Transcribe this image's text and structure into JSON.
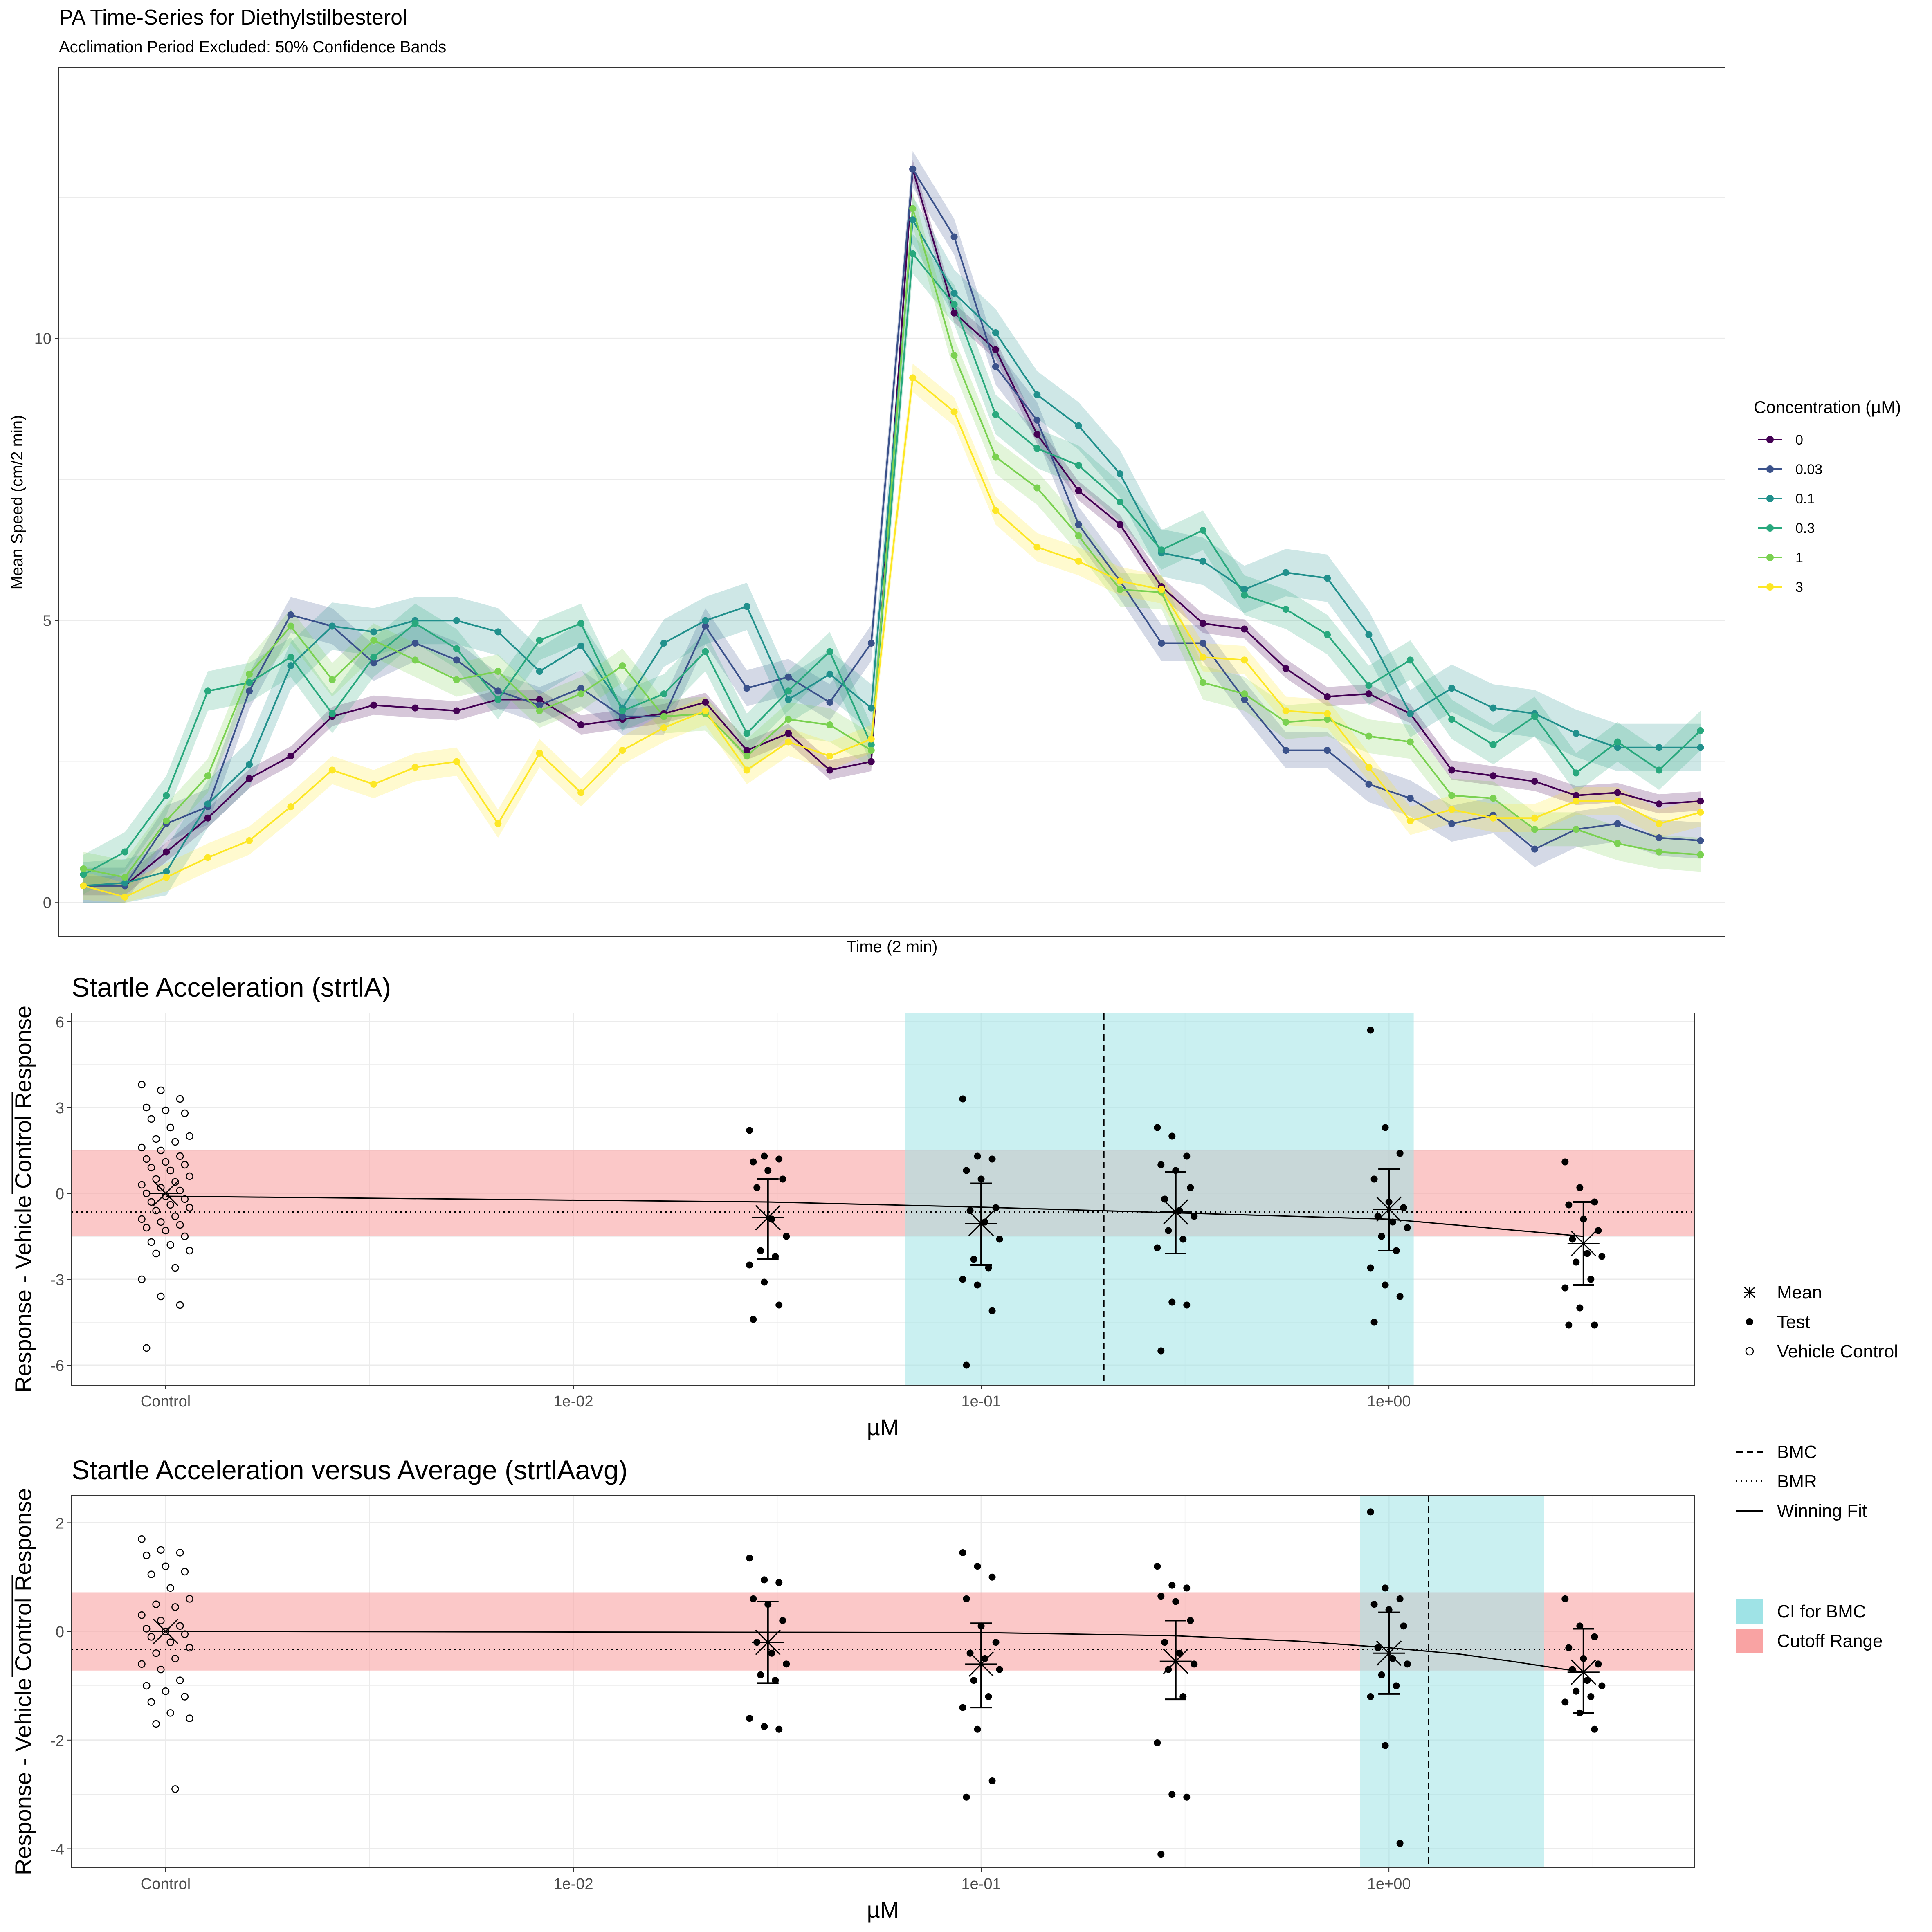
{
  "figure": {
    "title": "PA Time-Series for Diethylstilbesterol",
    "subtitle": "Acclimation Period Excluded: 50% Confidence Bands"
  },
  "chart_data": [
    {
      "type": "line",
      "title": "PA Time-Series for Diethylstilbesterol",
      "subtitle": "Acclimation Period Excluded: 50% Confidence Bands",
      "xlabel": "Time (2 min)",
      "ylabel": "Mean Speed (cm/2 min)",
      "ylim": [
        -0.6,
        14.8
      ],
      "yticks": [
        0,
        5,
        10
      ],
      "x": [
        1,
        2,
        3,
        4,
        5,
        6,
        7,
        8,
        9,
        10,
        11,
        12,
        13,
        14,
        15,
        16,
        17,
        18,
        19,
        20,
        21,
        22,
        23,
        24,
        25,
        26,
        27,
        28,
        29,
        30,
        31,
        32,
        33,
        34,
        35,
        36,
        37,
        38,
        39,
        40
      ],
      "grid": true,
      "legend_title": "Concentration (µM)",
      "legend_position": "right",
      "series": [
        {
          "name": "0",
          "color": "#440154",
          "band": 0.17,
          "values": [
            0.3,
            0.3,
            0.9,
            1.5,
            2.2,
            2.6,
            3.3,
            3.5,
            3.45,
            3.4,
            3.6,
            3.6,
            3.15,
            3.25,
            3.35,
            3.55,
            2.7,
            3.0,
            2.35,
            2.5,
            13.0,
            10.45,
            9.8,
            8.3,
            7.3,
            6.7,
            5.6,
            4.95,
            4.85,
            4.15,
            3.65,
            3.7,
            3.35,
            2.35,
            2.25,
            2.15,
            1.9,
            1.95,
            1.75,
            1.8
          ]
        },
        {
          "name": "0.03",
          "color": "#3b528b",
          "band": 0.32,
          "values": [
            0.3,
            0.3,
            1.4,
            1.7,
            3.75,
            5.1,
            4.9,
            4.25,
            4.6,
            4.3,
            3.75,
            3.5,
            3.8,
            3.3,
            3.3,
            4.9,
            3.8,
            4.0,
            3.55,
            4.6,
            13.0,
            11.8,
            9.5,
            8.55,
            6.7,
            5.7,
            4.6,
            4.6,
            3.6,
            2.7,
            2.7,
            2.1,
            1.85,
            1.4,
            1.55,
            0.95,
            1.3,
            1.4,
            1.15,
            1.1
          ]
        },
        {
          "name": "0.1",
          "color": "#21908c",
          "band": 0.42,
          "values": [
            0.3,
            0.35,
            0.55,
            1.75,
            2.45,
            4.2,
            4.9,
            4.8,
            5.0,
            5.0,
            4.8,
            4.1,
            4.55,
            3.45,
            4.6,
            5.0,
            5.25,
            3.6,
            4.05,
            3.45,
            12.1,
            10.8,
            10.1,
            9.0,
            8.45,
            7.6,
            6.2,
            6.05,
            5.55,
            5.85,
            5.75,
            4.75,
            3.35,
            3.8,
            3.45,
            3.35,
            3.0,
            2.75,
            2.75,
            2.75
          ]
        },
        {
          "name": "0.3",
          "color": "#28a87d",
          "band": 0.35,
          "values": [
            0.5,
            0.9,
            1.9,
            3.75,
            3.9,
            4.35,
            3.35,
            4.35,
            4.95,
            4.5,
            3.6,
            4.65,
            4.95,
            3.4,
            3.7,
            4.45,
            3.0,
            3.75,
            4.45,
            2.8,
            11.5,
            10.6,
            8.65,
            8.05,
            7.75,
            7.1,
            6.25,
            6.6,
            5.45,
            5.2,
            4.75,
            3.85,
            4.3,
            3.25,
            2.8,
            3.3,
            2.3,
            2.85,
            2.35,
            3.05
          ]
        },
        {
          "name": "1",
          "color": "#7ad151",
          "band": 0.3,
          "values": [
            0.6,
            0.45,
            1.45,
            2.25,
            4.05,
            4.9,
            3.95,
            4.65,
            4.3,
            3.95,
            4.1,
            3.4,
            3.7,
            4.2,
            3.3,
            3.35,
            2.6,
            3.25,
            3.15,
            2.7,
            12.3,
            9.7,
            7.9,
            7.35,
            6.5,
            5.55,
            5.5,
            3.9,
            3.7,
            3.2,
            3.25,
            2.95,
            2.85,
            1.9,
            1.85,
            1.3,
            1.3,
            1.05,
            0.9,
            0.85
          ]
        },
        {
          "name": "3",
          "color": "#fde725",
          "band": 0.25,
          "values": [
            0.3,
            0.1,
            0.45,
            0.8,
            1.1,
            1.7,
            2.35,
            2.1,
            2.4,
            2.5,
            1.4,
            2.65,
            1.95,
            2.7,
            3.1,
            3.4,
            2.35,
            2.85,
            2.6,
            2.9,
            9.3,
            8.7,
            6.95,
            6.3,
            6.05,
            5.7,
            5.55,
            4.35,
            4.3,
            3.4,
            3.35,
            2.4,
            1.45,
            1.65,
            1.5,
            1.5,
            1.8,
            1.8,
            1.4,
            1.6
          ]
        }
      ]
    },
    {
      "type": "scatter",
      "title": "Startle Acceleration (strtlA)",
      "xlabel": "µM",
      "ylabel": "Response - Vehicle Control Response",
      "x_scale": "log10",
      "xlim": [
        0.001,
        5
      ],
      "ylim": [
        -6.7,
        6.3
      ],
      "yticks": [
        -6,
        -3,
        0,
        3,
        6
      ],
      "xticks": [
        {
          "label": "Control",
          "value": 0.001
        },
        {
          "label": "1e-02",
          "value": 0.01
        },
        {
          "label": "1e-01",
          "value": 0.1
        },
        {
          "label": "1e+00",
          "value": 1
        }
      ],
      "bmc": 0.2,
      "bmc_ci": [
        0.065,
        1.15
      ],
      "bmr": -0.65,
      "cutoff_range": [
        -1.5,
        1.5
      ],
      "winning_fit": [
        [
          0.001,
          -0.1
        ],
        [
          0.03,
          -0.3
        ],
        [
          0.1,
          -0.48
        ],
        [
          0.3,
          -0.68
        ],
        [
          1.0,
          -0.9
        ],
        [
          3.0,
          -1.5
        ]
      ],
      "groups": [
        {
          "label": "Control",
          "conc": 0.001,
          "kind": "Vehicle Control",
          "mean": 0.0,
          "points": [
            3.8,
            3.6,
            3.3,
            3.0,
            2.9,
            2.8,
            2.6,
            2.3,
            2.0,
            1.9,
            1.8,
            1.6,
            1.5,
            1.3,
            1.2,
            1.1,
            1.0,
            0.9,
            0.8,
            0.6,
            0.5,
            0.4,
            0.3,
            0.2,
            0.1,
            0.0,
            -0.1,
            -0.2,
            -0.3,
            -0.4,
            -0.5,
            -0.6,
            -0.8,
            -0.9,
            -1.0,
            -1.1,
            -1.2,
            -1.3,
            -1.5,
            -1.7,
            -1.8,
            -2.0,
            -2.1,
            -2.6,
            -3.0,
            -3.6,
            -3.9,
            -5.4
          ]
        },
        {
          "label": "0.03",
          "conc": 0.03,
          "kind": "Test",
          "mean": -0.85,
          "lower": -2.3,
          "upper": 0.5,
          "points": [
            2.2,
            1.3,
            1.2,
            1.1,
            0.8,
            0.5,
            0.2,
            -0.9,
            -1.5,
            -2.0,
            -2.2,
            -2.5,
            -3.1,
            -3.9,
            -4.4
          ]
        },
        {
          "label": "0.1",
          "conc": 0.1,
          "kind": "Test",
          "mean": -1.05,
          "lower": -2.5,
          "upper": 0.35,
          "points": [
            3.3,
            1.3,
            1.2,
            0.8,
            0.5,
            -0.5,
            -0.6,
            -1.0,
            -1.6,
            -2.3,
            -2.6,
            -3.0,
            -3.2,
            -4.1,
            -6.0
          ]
        },
        {
          "label": "0.3",
          "conc": 0.3,
          "kind": "Test",
          "mean": -0.65,
          "lower": -2.1,
          "upper": 0.75,
          "points": [
            2.3,
            2.0,
            1.3,
            1.0,
            0.8,
            0.2,
            -0.2,
            -0.6,
            -0.8,
            -1.3,
            -1.6,
            -1.9,
            -3.8,
            -3.9,
            -5.5
          ]
        },
        {
          "label": "1",
          "conc": 1.0,
          "kind": "Test",
          "mean": -0.55,
          "lower": -2.0,
          "upper": 0.85,
          "points": [
            5.7,
            2.3,
            1.4,
            0.5,
            -0.3,
            -0.5,
            -0.8,
            -1.0,
            -1.2,
            -1.5,
            -2.0,
            -2.6,
            -3.2,
            -3.6,
            -4.5
          ]
        },
        {
          "label": "3",
          "conc": 3.0,
          "kind": "Test",
          "mean": -1.75,
          "lower": -3.2,
          "upper": -0.3,
          "points": [
            1.1,
            0.2,
            -0.3,
            -0.4,
            -0.9,
            -1.3,
            -1.6,
            -2.1,
            -2.2,
            -2.4,
            -3.0,
            -3.3,
            -4.0,
            -4.6,
            -4.6
          ]
        }
      ]
    },
    {
      "type": "scatter",
      "title": "Startle Acceleration versus Average (strtlAavg)",
      "xlabel": "µM",
      "ylabel": "Response - Vehicle Control Response",
      "x_scale": "log10",
      "xlim": [
        0.001,
        5
      ],
      "ylim": [
        -4.35,
        2.5
      ],
      "yticks": [
        -4,
        -2,
        0,
        2
      ],
      "xticks": [
        {
          "label": "Control",
          "value": 0.001
        },
        {
          "label": "1e-02",
          "value": 0.01
        },
        {
          "label": "1e-01",
          "value": 0.1
        },
        {
          "label": "1e+00",
          "value": 1
        }
      ],
      "bmc": 1.25,
      "bmc_ci": [
        0.85,
        2.4
      ],
      "bmr": -0.33,
      "cutoff_range": [
        -0.72,
        0.72
      ],
      "winning_fit": [
        [
          0.001,
          0.0
        ],
        [
          0.1,
          -0.02
        ],
        [
          0.3,
          -0.08
        ],
        [
          0.6,
          -0.18
        ],
        [
          1.0,
          -0.3
        ],
        [
          1.5,
          -0.42
        ],
        [
          2.0,
          -0.55
        ],
        [
          3.0,
          -0.75
        ]
      ],
      "groups": [
        {
          "label": "Control",
          "conc": 0.001,
          "kind": "Vehicle Control",
          "mean": 0.0,
          "points": [
            1.7,
            1.5,
            1.45,
            1.4,
            1.2,
            1.1,
            1.05,
            0.8,
            0.6,
            0.5,
            0.45,
            0.3,
            0.2,
            0.1,
            0.05,
            0.0,
            -0.05,
            -0.1,
            -0.2,
            -0.3,
            -0.4,
            -0.5,
            -0.6,
            -0.7,
            -0.9,
            -1.0,
            -1.1,
            -1.2,
            -1.3,
            -1.5,
            -1.6,
            -1.7,
            -2.9
          ]
        },
        {
          "label": "0.03",
          "conc": 0.03,
          "kind": "Test",
          "mean": -0.2,
          "lower": -0.95,
          "upper": 0.55,
          "points": [
            1.35,
            0.95,
            0.9,
            0.6,
            0.5,
            0.2,
            -0.2,
            -0.4,
            -0.6,
            -0.8,
            -0.9,
            -1.6,
            -1.75,
            -1.8
          ]
        },
        {
          "label": "0.1",
          "conc": 0.1,
          "kind": "Test",
          "mean": -0.6,
          "lower": -1.4,
          "upper": 0.15,
          "points": [
            1.45,
            1.2,
            1.0,
            0.6,
            0.1,
            -0.2,
            -0.4,
            -0.5,
            -0.7,
            -0.9,
            -1.2,
            -1.4,
            -1.8,
            -2.75,
            -3.05
          ]
        },
        {
          "label": "0.3",
          "conc": 0.3,
          "kind": "Test",
          "mean": -0.55,
          "lower": -1.25,
          "upper": 0.2,
          "points": [
            1.2,
            0.85,
            0.8,
            0.65,
            0.55,
            0.2,
            -0.2,
            -0.4,
            -0.6,
            -0.7,
            -1.2,
            -2.05,
            -3.0,
            -3.05,
            -4.1
          ]
        },
        {
          "label": "1",
          "conc": 1.0,
          "kind": "Test",
          "mean": -0.4,
          "lower": -1.15,
          "upper": 0.35,
          "points": [
            2.2,
            0.8,
            0.6,
            0.5,
            0.4,
            0.1,
            -0.3,
            -0.5,
            -0.6,
            -0.8,
            -1.0,
            -1.2,
            -2.1,
            -3.9
          ]
        },
        {
          "label": "3",
          "conc": 3.0,
          "kind": "Test",
          "mean": -0.75,
          "lower": -1.5,
          "upper": 0.05,
          "points": [
            0.6,
            0.1,
            -0.1,
            -0.3,
            -0.5,
            -0.6,
            -0.7,
            -0.9,
            -1.0,
            -1.1,
            -1.2,
            -1.3,
            -1.5,
            -1.8
          ]
        }
      ]
    }
  ],
  "legends": {
    "concentration": {
      "title": "Concentration (µM)",
      "items": [
        "0",
        "0.03",
        "0.1",
        "0.3",
        "1",
        "3"
      ]
    },
    "points": [
      {
        "label": "Mean",
        "glyph": "asterisk"
      },
      {
        "label": "Test",
        "glyph": "filled-circle"
      },
      {
        "label": "Vehicle Control",
        "glyph": "open-circle"
      }
    ],
    "lines": [
      {
        "label": "BMC",
        "style": "dashed"
      },
      {
        "label": "BMR",
        "style": "dotted"
      },
      {
        "label": "Winning Fit",
        "style": "solid"
      }
    ],
    "fills": [
      {
        "label": "CI for BMC",
        "color": "#9fe3e6"
      },
      {
        "label": "Cutoff Range",
        "color": "#f9a3a3"
      }
    ]
  },
  "colors": {
    "ci_fill": "#9fe3e6",
    "cutoff_fill": "#f9a3a3",
    "grid": "#ebebeb"
  }
}
